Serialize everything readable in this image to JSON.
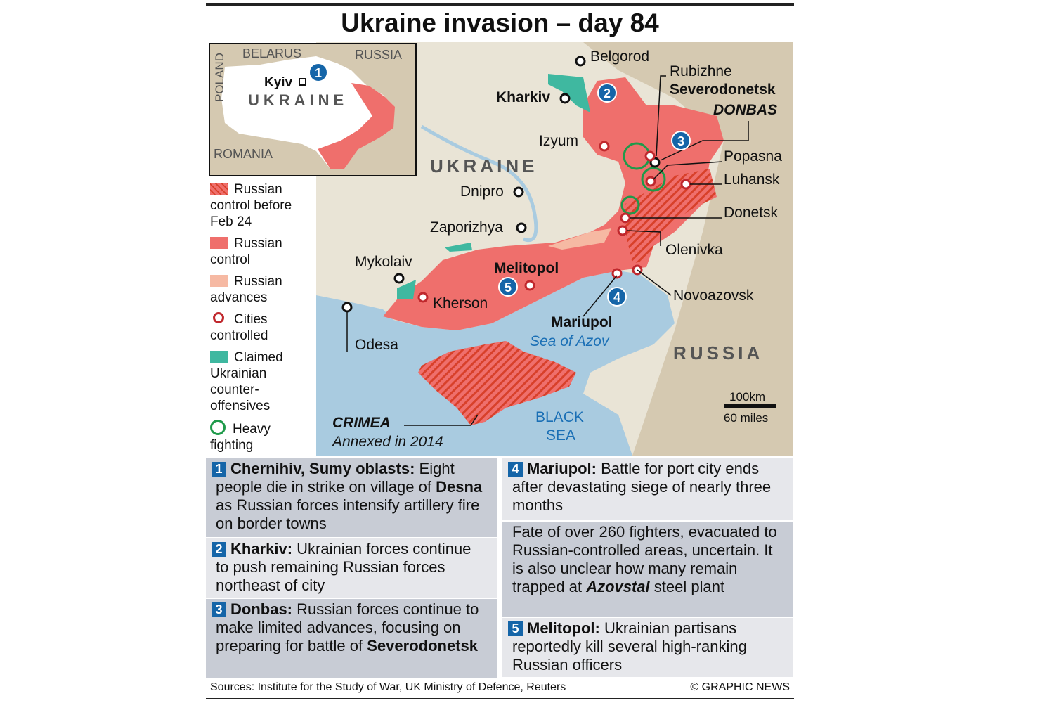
{
  "header": {
    "title": "Ukraine invasion – day 84"
  },
  "inset": {
    "labels": [
      "BELARUS",
      "RUSSIA",
      "POLAND",
      "Kyiv",
      "UKRAINE",
      "ROMANIA"
    ],
    "marker": "1"
  },
  "legend": [
    "Russian control before Feb 24",
    "Russian control",
    "Russian advances",
    "Cities controlled",
    "Claimed Ukrainian counter-offensives",
    "Heavy fighting"
  ],
  "map": {
    "labels": [
      "Belgorod",
      "Kharkiv",
      "Rubizhne",
      "Severodonetsk",
      "DONBAS",
      "Izyum",
      "UKRAINE",
      "Popasna",
      "Luhansk",
      "Dnipro",
      "Donetsk",
      "Zaporizhya",
      "Olenivka",
      "Mykolaiv",
      "Melitopol",
      "Kherson",
      "Novoazovsk",
      "Mariupol",
      "Sea of Azov",
      "Odesa",
      "RUSSIA",
      "CRIMEA",
      "Annexed in 2014",
      "BLACK",
      "SEA"
    ],
    "markers": [
      "2",
      "3",
      "4",
      "5"
    ],
    "scale": [
      "100km",
      "60 miles"
    ]
  },
  "notes": [
    {
      "number": "1",
      "heading": "Chernihiv, Sumy oblasts:",
      "parts": [
        {
          "text": "Eight people die in strike on village of "
        },
        {
          "text": "Desna",
          "bold": true
        },
        {
          "text": " as Russian forces intensify artillery fire on border towns"
        }
      ]
    },
    {
      "number": "2",
      "heading": "Kharkiv:",
      "parts": [
        {
          "text": "Ukrainian forces continue to push remaining Russian forces northeast of city"
        }
      ]
    },
    {
      "number": "3",
      "heading": "Donbas:",
      "parts": [
        {
          "text": "Russian forces continue to make limited advances, focusing on preparing for battle of "
        },
        {
          "text": "Severodonetsk",
          "bold": true
        }
      ]
    },
    {
      "number": "4",
      "heading": "Mariupol:",
      "parts": [
        {
          "text": "Battle for port city ends after devastating siege of nearly three months"
        }
      ],
      "more": [
        {
          "text": "Fate of over 260 fighters, evacuated to Russian-controlled areas, uncertain. It is also unclear how many remain trapped at "
        },
        {
          "text": "Azovstal",
          "bold": true,
          "italic": true
        },
        {
          "text": " steel plant"
        }
      ]
    },
    {
      "number": "5",
      "heading": "Melitopol:",
      "parts": [
        {
          "text": "Ukrainian partisans reportedly kill several high-ranking Russian officers"
        }
      ]
    }
  ],
  "footer": {
    "sources": "Sources: Institute for the Study of War, UK Ministry of Defence, Reuters",
    "credit": "© GRAPHIC NEWS"
  }
}
